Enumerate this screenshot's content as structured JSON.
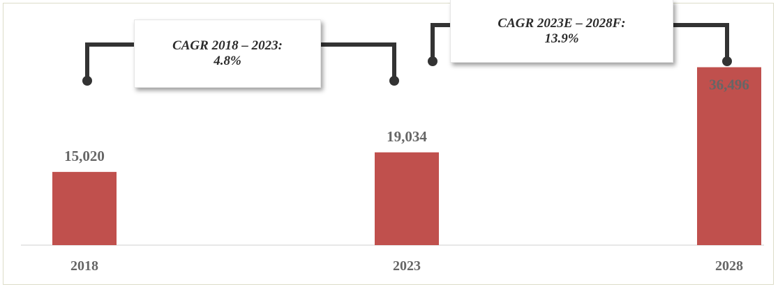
{
  "colors": {
    "bar": "#c0504d",
    "value_label": "#666666",
    "connector": "#333333",
    "axis": "#cfcfcf"
  },
  "chart_data": {
    "type": "bar",
    "categories": [
      "2018",
      "2023",
      "2028"
    ],
    "values": [
      15020,
      19034,
      36496
    ],
    "value_labels": [
      "15,020",
      "19,034",
      "36,496"
    ],
    "title": "",
    "xlabel": "",
    "ylabel": "",
    "ylim": [
      0,
      40000
    ],
    "grid": false,
    "legend": "none",
    "annotations": [
      {
        "line1": "CAGR 2018 – 2023:",
        "line2": "4.8%",
        "from": "2018",
        "to": "2023"
      },
      {
        "line1": "CAGR 2023E – 2028F:",
        "line2": "13.9%",
        "from": "2023",
        "to": "2028"
      }
    ]
  }
}
